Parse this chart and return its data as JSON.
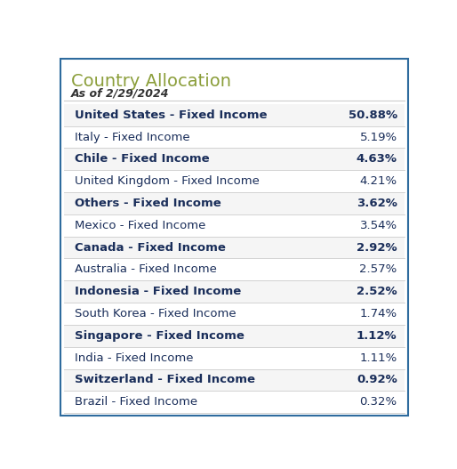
{
  "title": "Country Allocation",
  "subtitle": "As of 2/29/2024",
  "title_color": "#8B9E3A",
  "subtitle_color": "#333333",
  "rows": [
    {
      "label": "United States - Fixed Income",
      "value": "50.88%",
      "bold": true,
      "bg": "#f5f5f5"
    },
    {
      "label": "Italy - Fixed Income",
      "value": "5.19%",
      "bold": false,
      "bg": "#ffffff"
    },
    {
      "label": "Chile - Fixed Income",
      "value": "4.63%",
      "bold": true,
      "bg": "#f5f5f5"
    },
    {
      "label": "United Kingdom - Fixed Income",
      "value": "4.21%",
      "bold": false,
      "bg": "#ffffff"
    },
    {
      "label": "Others - Fixed Income",
      "value": "3.62%",
      "bold": true,
      "bg": "#f5f5f5"
    },
    {
      "label": "Mexico - Fixed Income",
      "value": "3.54%",
      "bold": false,
      "bg": "#ffffff"
    },
    {
      "label": "Canada - Fixed Income",
      "value": "2.92%",
      "bold": true,
      "bg": "#f5f5f5"
    },
    {
      "label": "Australia - Fixed Income",
      "value": "2.57%",
      "bold": false,
      "bg": "#ffffff"
    },
    {
      "label": "Indonesia - Fixed Income",
      "value": "2.52%",
      "bold": true,
      "bg": "#f5f5f5"
    },
    {
      "label": "South Korea - Fixed Income",
      "value": "1.74%",
      "bold": false,
      "bg": "#ffffff"
    },
    {
      "label": "Singapore - Fixed Income",
      "value": "1.12%",
      "bold": true,
      "bg": "#f5f5f5"
    },
    {
      "label": "India - Fixed Income",
      "value": "1.11%",
      "bold": false,
      "bg": "#ffffff"
    },
    {
      "label": "Switzerland - Fixed Income",
      "value": "0.92%",
      "bold": true,
      "bg": "#f5f5f5"
    },
    {
      "label": "Brazil - Fixed Income",
      "value": "0.32%",
      "bold": false,
      "bg": "#ffffff"
    }
  ],
  "row_text_color": "#1a2e5a",
  "value_text_color": "#1a2e5a",
  "border_color": "#cccccc",
  "outer_border_color": "#2e6b9e",
  "bg_color": "#ffffff",
  "label_fontsize": 9.5,
  "value_fontsize": 9.5,
  "title_fontsize": 14,
  "subtitle_fontsize": 9
}
